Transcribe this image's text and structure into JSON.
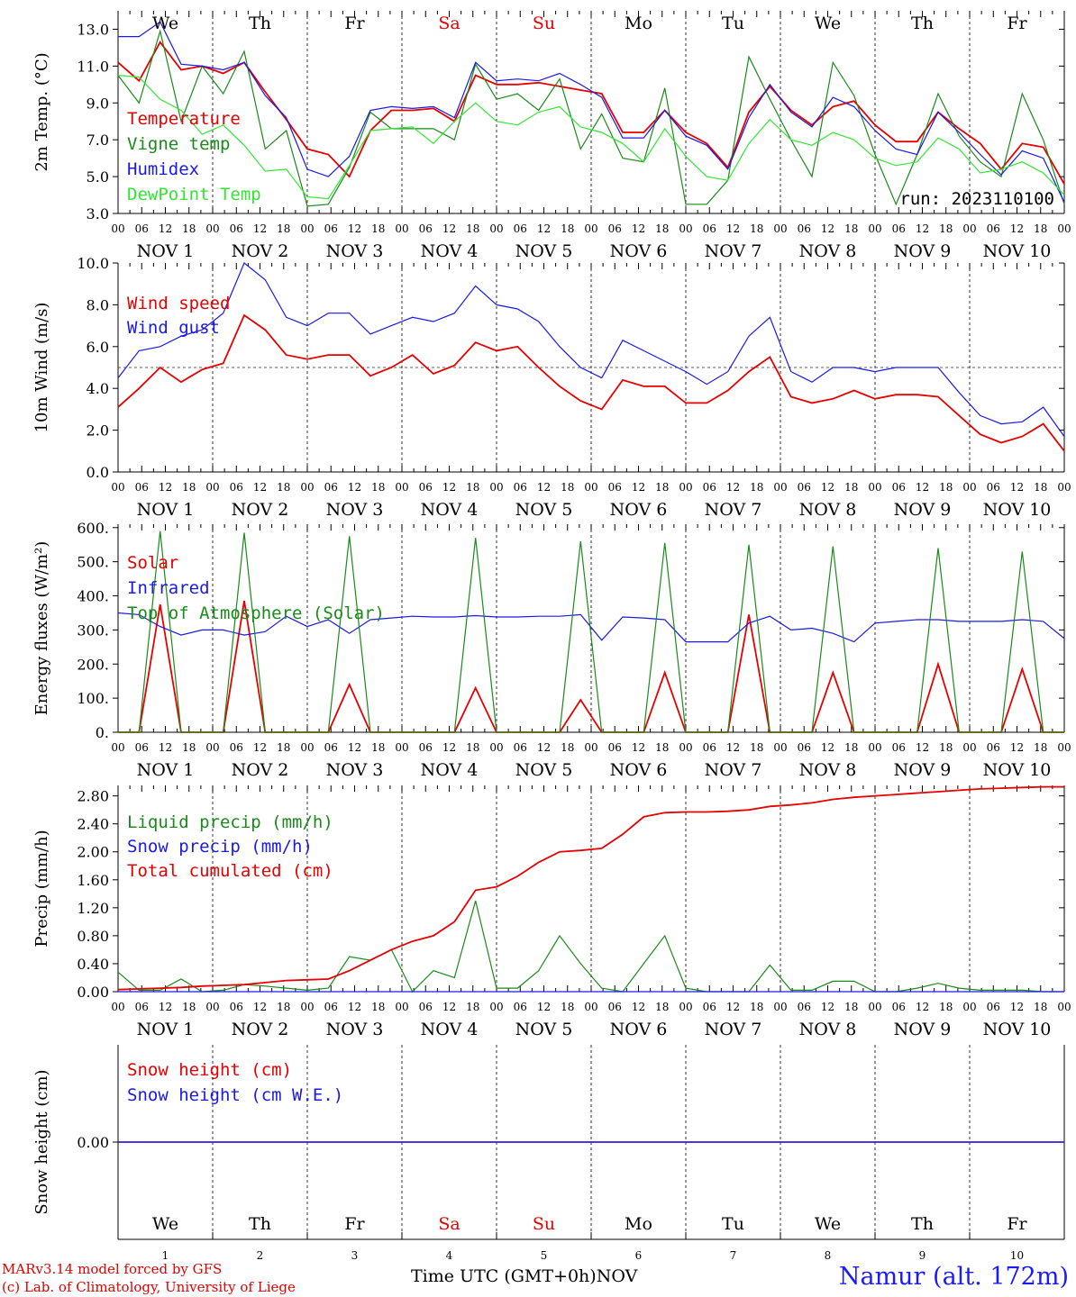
{
  "colors": {
    "red": "#e60000",
    "green": "#1a8a1a",
    "blue": "#1a1ae6",
    "light_green": "#33e633",
    "purple": "#8030c0",
    "weekend": "#e60000"
  },
  "time_axis": {
    "hour_ticks": [
      "00",
      "06",
      "12",
      "18"
    ],
    "final_tick": "00",
    "dates": [
      "NOV  1",
      "NOV  2",
      "NOV  3",
      "NOV  4",
      "NOV  5",
      "NOV  6",
      "NOV  7",
      "NOV  8",
      "NOV  9",
      "NOV 10"
    ],
    "days": [
      "We",
      "Th",
      "Fr",
      "Sa",
      "Su",
      "Mo",
      "Tu",
      "We",
      "Th",
      "Fr"
    ],
    "weekend_days": [
      "Sa",
      "Su"
    ],
    "day_numbers": [
      "1",
      "2",
      "3",
      "4",
      "5",
      "6",
      "7",
      "8",
      "9",
      "10"
    ]
  },
  "chart_data": [
    {
      "type": "line",
      "ylabel": "2m Temp. (°C)",
      "yticks": [
        "3.0",
        "5.0",
        "7.0",
        "9.0",
        "11.0",
        "13.0"
      ],
      "ylim": [
        3,
        14
      ],
      "annotation": "run: 2023110100",
      "series": [
        {
          "name": "Temperature",
          "color": "red",
          "values": [
            11.2,
            10.2,
            12.3,
            10.8,
            11.0,
            10.6,
            11.2,
            9.6,
            8.1,
            6.5,
            6.2,
            5.0,
            7.5,
            8.6,
            8.6,
            8.7,
            8.0,
            10.5,
            10.0,
            10.0,
            10.1,
            9.9,
            9.7,
            9.5,
            7.4,
            7.4,
            8.6,
            7.4,
            6.8,
            5.5,
            8.5,
            9.9,
            8.6,
            7.8,
            8.8,
            9.1,
            7.8,
            6.9,
            6.9,
            8.5,
            7.6,
            6.8,
            5.4,
            6.8,
            6.6,
            4.6
          ]
        },
        {
          "name": "Vigne temp",
          "color": "green",
          "values": [
            10.5,
            9.0,
            12.9,
            8.0,
            11.0,
            9.5,
            11.8,
            6.5,
            7.5,
            3.4,
            3.5,
            5.5,
            8.5,
            7.6,
            7.6,
            7.6,
            7.0,
            11.1,
            9.2,
            9.5,
            8.6,
            10.3,
            6.5,
            8.4,
            6.0,
            5.8,
            9.8,
            3.5,
            3.5,
            4.8,
            11.5,
            9.2,
            7.0,
            5.0,
            11.2,
            9.4,
            6.2,
            3.5,
            6.2,
            9.5,
            7.2,
            5.8,
            5.0,
            9.5,
            7.0,
            3.5
          ]
        },
        {
          "name": "Humidex",
          "color": "blue",
          "values": [
            12.6,
            12.6,
            13.4,
            11.1,
            11.0,
            10.8,
            11.2,
            9.4,
            8.2,
            5.4,
            5.0,
            6.1,
            8.6,
            8.8,
            8.7,
            8.8,
            8.2,
            11.2,
            10.2,
            10.3,
            10.2,
            10.6,
            10.0,
            9.3,
            7.1,
            7.1,
            8.6,
            7.2,
            6.7,
            5.4,
            8.2,
            10.0,
            8.5,
            7.7,
            9.3,
            8.8,
            7.5,
            6.5,
            6.2,
            8.5,
            7.4,
            6.2,
            5.1,
            6.4,
            6.0,
            3.6
          ]
        },
        {
          "name": "DewPoint Temp",
          "color": "light_green",
          "values": [
            10.5,
            10.4,
            9.2,
            8.6,
            7.3,
            7.8,
            6.7,
            5.3,
            5.4,
            3.9,
            3.8,
            5.6,
            7.5,
            7.6,
            7.7,
            6.8,
            8.0,
            9.0,
            8.0,
            7.8,
            8.5,
            8.8,
            7.7,
            7.4,
            6.8,
            5.8,
            7.6,
            6.1,
            5.0,
            4.8,
            6.8,
            8.1,
            7.0,
            6.7,
            7.4,
            7.0,
            6.0,
            5.6,
            5.8,
            7.1,
            6.5,
            5.2,
            5.4,
            5.8,
            5.2,
            4.0
          ]
        }
      ]
    },
    {
      "type": "line",
      "ylabel": "10m Wind (m/s)",
      "yticks": [
        "0.0",
        "2.0",
        "4.0",
        "6.0",
        "8.0",
        "10.0"
      ],
      "ylim": [
        0,
        10
      ],
      "reference_line": 5,
      "series": [
        {
          "name": "Wind speed",
          "color": "red",
          "values": [
            3.1,
            4.0,
            5.0,
            4.3,
            4.9,
            5.2,
            7.5,
            6.8,
            5.6,
            5.4,
            5.6,
            5.6,
            4.6,
            5.0,
            5.6,
            4.7,
            5.1,
            6.2,
            5.8,
            6.0,
            5.0,
            4.1,
            3.4,
            3.0,
            4.4,
            4.1,
            4.1,
            3.3,
            3.3,
            3.9,
            4.8,
            5.5,
            3.6,
            3.3,
            3.5,
            3.9,
            3.5,
            3.7,
            3.7,
            3.6,
            2.7,
            1.8,
            1.4,
            1.7,
            2.3,
            1.0
          ]
        },
        {
          "name": "Wind gust",
          "color": "blue",
          "values": [
            4.5,
            5.8,
            6.0,
            6.5,
            6.8,
            7.6,
            10.0,
            9.2,
            7.4,
            7.0,
            7.6,
            7.6,
            6.6,
            7.0,
            7.4,
            7.2,
            7.6,
            8.9,
            8.0,
            7.8,
            7.2,
            6.0,
            5.0,
            4.5,
            6.3,
            5.8,
            5.3,
            4.8,
            4.2,
            4.8,
            6.5,
            7.4,
            4.8,
            4.3,
            5.0,
            5.0,
            4.8,
            5.0,
            5.0,
            5.0,
            3.8,
            2.7,
            2.3,
            2.4,
            3.1,
            1.7
          ]
        }
      ]
    },
    {
      "type": "line",
      "ylabel": "Energy fluxes (W/m²)",
      "yticks": [
        "0.",
        "100.",
        "200.",
        "300.",
        "400.",
        "500.",
        "600."
      ],
      "ylim": [
        0,
        610
      ],
      "series": [
        {
          "name": "Solar",
          "color": "red",
          "values": [
            0,
            0,
            375,
            0,
            0,
            0,
            385,
            0,
            0,
            0,
            0,
            140,
            0,
            0,
            0,
            0,
            0,
            130,
            0,
            0,
            0,
            0,
            95,
            0,
            0,
            0,
            175,
            0,
            0,
            0,
            345,
            0,
            0,
            0,
            175,
            0,
            0,
            0,
            0,
            200,
            0,
            0,
            0,
            185,
            0,
            0
          ]
        },
        {
          "name": "Infrared",
          "color": "blue",
          "values": [
            350,
            345,
            310,
            285,
            300,
            300,
            285,
            295,
            340,
            310,
            330,
            290,
            330,
            335,
            340,
            338,
            338,
            342,
            338,
            338,
            340,
            340,
            345,
            270,
            338,
            335,
            330,
            265,
            265,
            265,
            320,
            340,
            300,
            305,
            290,
            265,
            320,
            325,
            330,
            330,
            325,
            325,
            325,
            330,
            325,
            275
          ]
        },
        {
          "name": "Top of Atmosphere (Solar)",
          "color": "green",
          "values": [
            0,
            0,
            590,
            0,
            0,
            0,
            585,
            0,
            0,
            0,
            0,
            575,
            0,
            0,
            0,
            0,
            0,
            570,
            0,
            0,
            0,
            0,
            560,
            0,
            0,
            0,
            555,
            0,
            0,
            0,
            550,
            0,
            0,
            0,
            545,
            0,
            0,
            0,
            0,
            540,
            0,
            0,
            0,
            530,
            0,
            0
          ]
        }
      ]
    },
    {
      "type": "line",
      "ylabel": "Precip (mm/h)",
      "yticks": [
        "0.00",
        "0.40",
        "0.80",
        "1.20",
        "1.60",
        "2.00",
        "2.40",
        "2.80"
      ],
      "ylim": [
        0,
        2.95
      ],
      "series": [
        {
          "name": "Liquid precip (mm/h)",
          "color": "green",
          "values": [
            0.28,
            0.02,
            0.02,
            0.18,
            0.0,
            0.02,
            0.1,
            0.08,
            0.05,
            0.02,
            0.05,
            0.5,
            0.45,
            0.6,
            0.0,
            0.3,
            0.2,
            1.3,
            0.05,
            0.05,
            0.3,
            0.8,
            0.4,
            0.05,
            0.0,
            0.4,
            0.8,
            0.05,
            0.0,
            0.0,
            0.0,
            0.38,
            0.02,
            0.02,
            0.15,
            0.15,
            0.0,
            0.0,
            0.05,
            0.12,
            0.05,
            0.02,
            0.02,
            0.02,
            0.0,
            0.0
          ]
        },
        {
          "name": "Snow precip (mm/h)",
          "color": "blue",
          "values": [
            0,
            0,
            0,
            0,
            0,
            0,
            0,
            0,
            0,
            0,
            0,
            0,
            0,
            0,
            0,
            0,
            0,
            0,
            0,
            0,
            0,
            0,
            0,
            0,
            0,
            0,
            0,
            0,
            0,
            0,
            0,
            0,
            0,
            0,
            0,
            0,
            0,
            0,
            0,
            0,
            0,
            0,
            0,
            0,
            0,
            0
          ]
        },
        {
          "name": "Total cumulated (cm)",
          "color": "red",
          "values": [
            0.03,
            0.04,
            0.05,
            0.06,
            0.08,
            0.09,
            0.1,
            0.13,
            0.16,
            0.17,
            0.18,
            0.3,
            0.45,
            0.6,
            0.72,
            0.8,
            1.0,
            1.45,
            1.5,
            1.65,
            1.85,
            2.0,
            2.02,
            2.05,
            2.25,
            2.5,
            2.56,
            2.57,
            2.57,
            2.58,
            2.6,
            2.65,
            2.67,
            2.7,
            2.75,
            2.78,
            2.8,
            2.82,
            2.84,
            2.86,
            2.88,
            2.9,
            2.91,
            2.92,
            2.93,
            2.93
          ]
        }
      ]
    },
    {
      "type": "line",
      "ylabel": "Snow height (cm)",
      "yticks": [
        "0.00"
      ],
      "ylim": [
        -1,
        1
      ],
      "series": [
        {
          "name": "Snow height (cm)",
          "color": "red",
          "values": [
            0,
            0
          ]
        },
        {
          "name": "Snow height (cm W.E.)",
          "color": "blue",
          "values": [
            0,
            0
          ]
        }
      ]
    }
  ],
  "footer": {
    "model_line": "MARv3.14 model forced by GFS",
    "credit_line": "(c) Lab. of Climatology, University of Liege",
    "axis_title": "Time UTC (GMT+0h)",
    "axis_month": "NOV",
    "station": "Namur (alt. 172m)"
  }
}
